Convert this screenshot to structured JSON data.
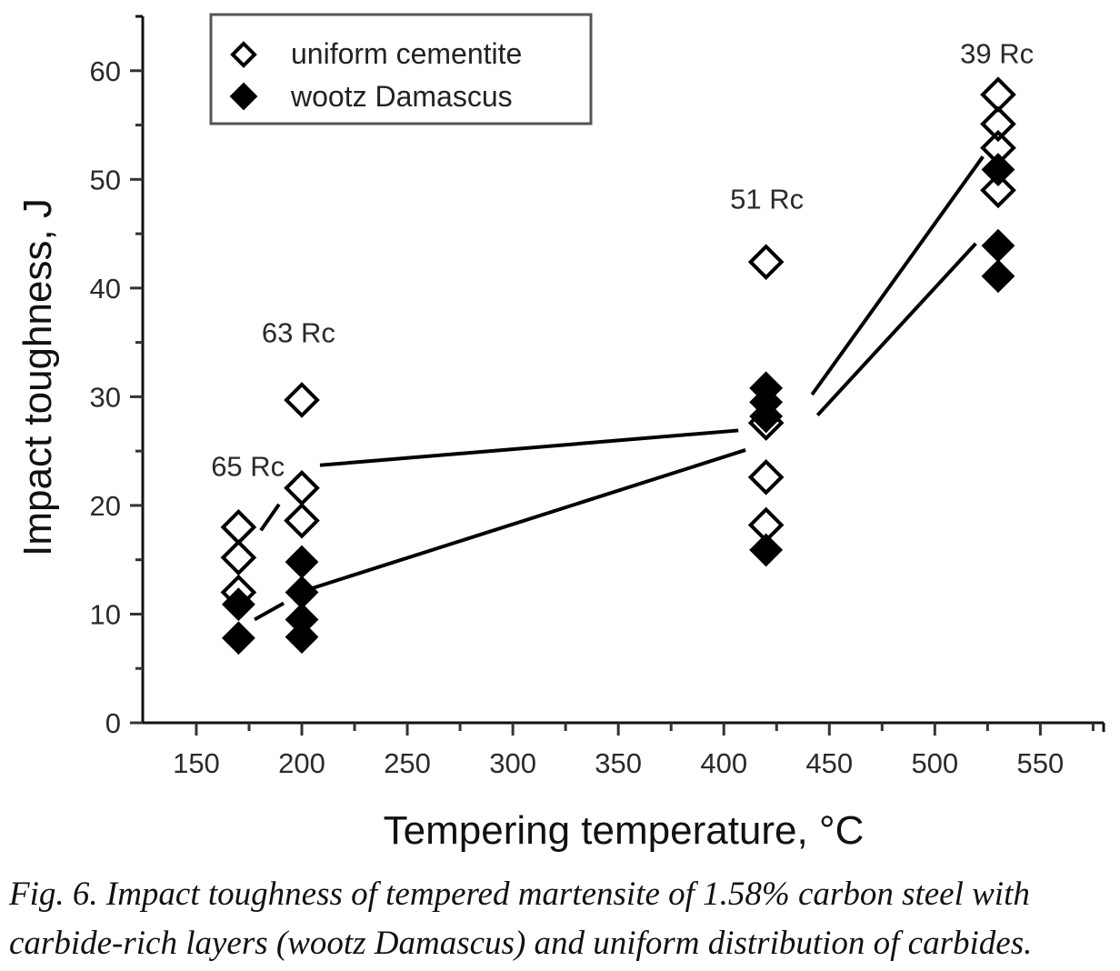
{
  "chart_data": {
    "type": "scatter",
    "title": "",
    "xlabel": "Tempering temperature, °C",
    "ylabel": "Impact toughness, J",
    "xlim": [
      124.6,
      580
    ],
    "ylim": [
      0,
      65
    ],
    "x_ticks": [
      150,
      200,
      250,
      300,
      350,
      400,
      450,
      500,
      550
    ],
    "x_minor_ticks": [
      175,
      225,
      275,
      325,
      375,
      425,
      475,
      525,
      575
    ],
    "y_ticks": [
      0,
      10,
      20,
      30,
      40,
      50,
      60
    ],
    "y_minor_ticks": [
      5,
      15,
      25,
      35,
      45,
      55
    ],
    "grid": false,
    "legend": {
      "position": "top-left",
      "entries": [
        "uniform cementite",
        "wootz Damascus"
      ]
    },
    "series": [
      {
        "name": "uniform cementite",
        "marker": "open-diamond",
        "color": "#000000",
        "points": [
          {
            "x": 170,
            "y": 18.0
          },
          {
            "x": 170,
            "y": 15.2
          },
          {
            "x": 170,
            "y": 12.0
          },
          {
            "x": 200,
            "y": 29.7
          },
          {
            "x": 200,
            "y": 21.6
          },
          {
            "x": 200,
            "y": 18.6
          },
          {
            "x": 420,
            "y": 42.4
          },
          {
            "x": 420,
            "y": 27.6
          },
          {
            "x": 420,
            "y": 22.6
          },
          {
            "x": 420,
            "y": 18.2
          },
          {
            "x": 530,
            "y": 57.8
          },
          {
            "x": 530,
            "y": 55.1
          },
          {
            "x": 530,
            "y": 52.9
          },
          {
            "x": 530,
            "y": 49.0
          }
        ]
      },
      {
        "name": "wootz Damascus",
        "marker": "filled-diamond",
        "color": "#000000",
        "points": [
          {
            "x": 170,
            "y": 10.9
          },
          {
            "x": 170,
            "y": 7.8
          },
          {
            "x": 200,
            "y": 14.8
          },
          {
            "x": 200,
            "y": 12.0
          },
          {
            "x": 200,
            "y": 9.5
          },
          {
            "x": 200,
            "y": 7.9
          },
          {
            "x": 420,
            "y": 30.8
          },
          {
            "x": 420,
            "y": 29.5
          },
          {
            "x": 420,
            "y": 28.2
          },
          {
            "x": 420,
            "y": 15.9
          },
          {
            "x": 530,
            "y": 50.9
          },
          {
            "x": 530,
            "y": 43.9
          },
          {
            "x": 530,
            "y": 41.1
          }
        ]
      }
    ],
    "trend_lines": [
      {
        "series": "uniform cementite",
        "from": [
          180.6,
          17.7
        ],
        "to": [
          189.2,
          20.1
        ]
      },
      {
        "series": "uniform cementite",
        "from": [
          208.6,
          23.7
        ],
        "to": [
          406.9,
          26.9
        ]
      },
      {
        "series": "uniform cementite",
        "from": [
          441.8,
          30.2
        ],
        "to": [
          522.8,
          52.1
        ]
      },
      {
        "series": "wootz Damascus",
        "from": [
          177.6,
          9.5
        ],
        "to": [
          191.4,
          11.0
        ]
      },
      {
        "series": "wootz Damascus",
        "from": [
          200.4,
          12.1
        ],
        "to": [
          410.3,
          25.1
        ]
      },
      {
        "series": "wootz Damascus",
        "from": [
          444.4,
          28.3
        ],
        "to": [
          519.4,
          44.1
        ]
      }
    ],
    "annotations": [
      {
        "text": "65 Rc",
        "x": 157,
        "y": 22.7
      },
      {
        "text": "63 Rc",
        "x": 181,
        "y": 35.0
      },
      {
        "text": "51 Rc",
        "x": 403,
        "y": 47.3
      },
      {
        "text": "39 Rc",
        "x": 512,
        "y": 60.7
      }
    ]
  },
  "caption": {
    "line1": "Fig. 6.  Impact toughness of tempered martensite of 1.58% carbon steel with",
    "line2": "carbide-rich layers (wootz Damascus) and uniform distribution of carbides."
  }
}
